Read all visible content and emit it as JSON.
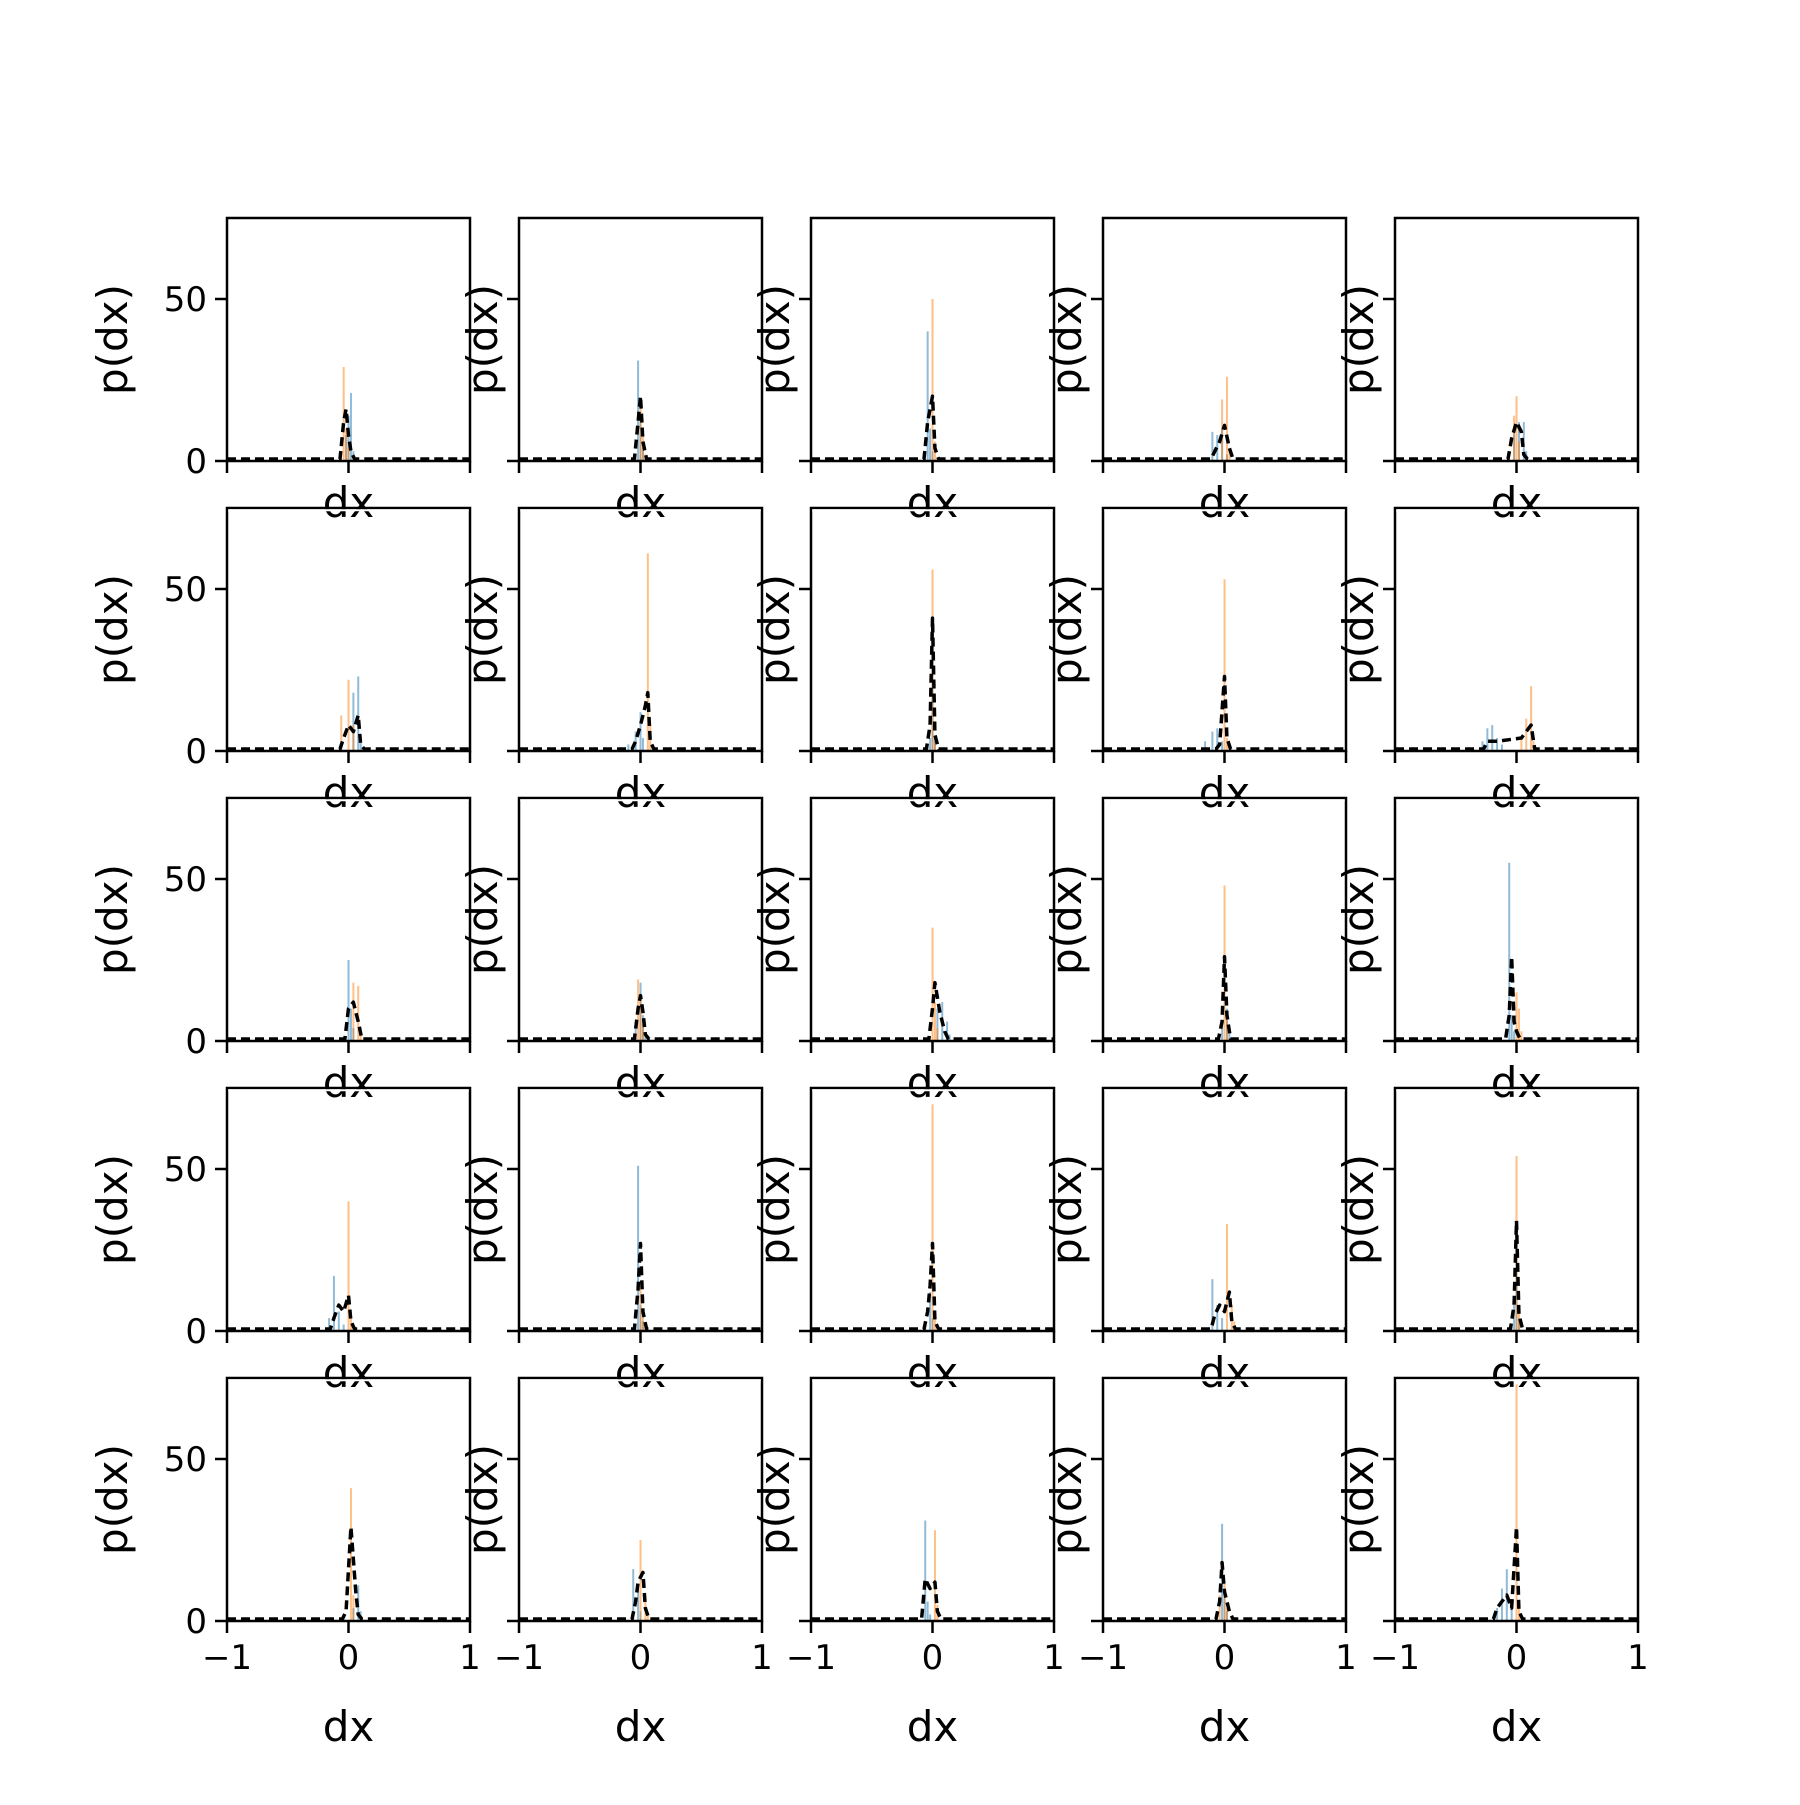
{
  "figure": {
    "rows": 5,
    "cols": 5,
    "xlabel": "dx",
    "ylabel": "p(dx)",
    "xlim": [
      -1,
      1
    ],
    "ylim": [
      0,
      75
    ],
    "xticks": [
      -1,
      0,
      1
    ],
    "xtick_labels": [
      "−1",
      "0",
      "1"
    ],
    "yticks": [
      0,
      50
    ],
    "ytick_labels": [
      "0",
      "50"
    ],
    "colors": {
      "series_a": "#1f77b4",
      "series_b": "#ff7f0e",
      "series_c": "#000000"
    }
  },
  "chart_data": {
    "type": "area",
    "grid": false,
    "legend": "none",
    "panel_layout": "5x5 grid of histogram panels, row-major order",
    "panels": [
      {
        "a": [
          [
            -0.02,
            8
          ],
          [
            0.0,
            14
          ],
          [
            0.02,
            21
          ],
          [
            0.04,
            3
          ]
        ],
        "b": [
          [
            -0.04,
            29
          ],
          [
            -0.02,
            10
          ],
          [
            0.0,
            4
          ]
        ],
        "c": [
          [
            -0.04,
            12
          ],
          [
            -0.02,
            16
          ],
          [
            0.0,
            8
          ],
          [
            0.02,
            3
          ]
        ]
      },
      {
        "a": [
          [
            -0.02,
            31
          ],
          [
            0.0,
            12
          ],
          [
            0.02,
            4
          ]
        ],
        "b": [
          [
            0.0,
            18
          ],
          [
            0.02,
            8
          ],
          [
            0.04,
            2
          ]
        ],
        "c": [
          [
            -0.02,
            12
          ],
          [
            0.0,
            20
          ],
          [
            0.02,
            6
          ]
        ]
      },
      {
        "a": [
          [
            -0.04,
            40
          ],
          [
            -0.02,
            10
          ],
          [
            0.0,
            3
          ]
        ],
        "b": [
          [
            0.0,
            50
          ],
          [
            0.02,
            6
          ]
        ],
        "c": [
          [
            -0.04,
            12
          ],
          [
            -0.02,
            16
          ],
          [
            0.0,
            20
          ],
          [
            0.02,
            4
          ]
        ]
      },
      {
        "a": [
          [
            -0.1,
            9
          ],
          [
            -0.06,
            8
          ],
          [
            -0.02,
            10
          ],
          [
            0.02,
            2
          ]
        ],
        "b": [
          [
            -0.02,
            19
          ],
          [
            0.02,
            26
          ],
          [
            0.04,
            4
          ]
        ],
        "c": [
          [
            -0.08,
            3
          ],
          [
            -0.04,
            6
          ],
          [
            0.0,
            11
          ],
          [
            0.04,
            4
          ]
        ]
      },
      {
        "a": [
          [
            -0.02,
            10
          ],
          [
            0.02,
            12
          ],
          [
            0.06,
            12
          ],
          [
            0.08,
            3
          ]
        ],
        "b": [
          [
            -0.02,
            14
          ],
          [
            0.0,
            20
          ],
          [
            0.02,
            6
          ]
        ],
        "c": [
          [
            -0.04,
            7
          ],
          [
            0.0,
            12
          ],
          [
            0.04,
            9
          ],
          [
            0.06,
            2
          ]
        ]
      },
      {
        "a": [
          [
            0.04,
            18
          ],
          [
            0.08,
            23
          ],
          [
            0.1,
            4
          ]
        ],
        "b": [
          [
            -0.06,
            11
          ],
          [
            0.0,
            22
          ],
          [
            0.04,
            8
          ]
        ],
        "c": [
          [
            -0.04,
            4
          ],
          [
            0.0,
            8
          ],
          [
            0.04,
            6
          ],
          [
            0.08,
            11
          ],
          [
            0.1,
            2
          ]
        ]
      },
      {
        "a": [
          [
            -0.1,
            2
          ],
          [
            -0.04,
            6
          ],
          [
            0.0,
            12
          ],
          [
            0.02,
            4
          ]
        ],
        "b": [
          [
            0.06,
            61
          ],
          [
            0.08,
            8
          ]
        ],
        "c": [
          [
            -0.04,
            3
          ],
          [
            0.0,
            8
          ],
          [
            0.04,
            14
          ],
          [
            0.06,
            18
          ],
          [
            0.08,
            3
          ]
        ]
      },
      {
        "a": [
          [
            -0.02,
            4
          ],
          [
            0.0,
            34
          ],
          [
            0.02,
            4
          ]
        ],
        "b": [
          [
            0.0,
            56
          ],
          [
            0.02,
            3
          ]
        ],
        "c": [
          [
            -0.02,
            8
          ],
          [
            0.0,
            41
          ],
          [
            0.02,
            5
          ]
        ]
      },
      {
        "a": [
          [
            -0.16,
            3
          ],
          [
            -0.1,
            6
          ],
          [
            -0.06,
            7
          ],
          [
            -0.02,
            3
          ]
        ],
        "b": [
          [
            0.0,
            53
          ],
          [
            0.02,
            4
          ]
        ],
        "c": [
          [
            -0.04,
            2
          ],
          [
            0.0,
            23
          ],
          [
            0.02,
            4
          ]
        ]
      },
      {
        "a": [
          [
            -0.28,
            3
          ],
          [
            -0.24,
            7
          ],
          [
            -0.2,
            8
          ],
          [
            -0.16,
            4
          ],
          [
            -0.12,
            2
          ]
        ],
        "b": [
          [
            0.04,
            4
          ],
          [
            0.08,
            10
          ],
          [
            0.12,
            20
          ],
          [
            0.14,
            3
          ]
        ],
        "c": [
          [
            -0.24,
            3
          ],
          [
            -0.16,
            3
          ],
          [
            0.04,
            4
          ],
          [
            0.12,
            8
          ]
        ]
      },
      {
        "a": [
          [
            0.0,
            25
          ],
          [
            0.02,
            10
          ],
          [
            0.04,
            4
          ]
        ],
        "b": [
          [
            0.04,
            18
          ],
          [
            0.08,
            17
          ],
          [
            0.1,
            4
          ]
        ],
        "c": [
          [
            0.0,
            10
          ],
          [
            0.04,
            12
          ],
          [
            0.08,
            6
          ]
        ]
      },
      {
        "a": [
          [
            -0.04,
            6
          ],
          [
            0.0,
            18
          ],
          [
            0.02,
            8
          ],
          [
            0.04,
            2
          ]
        ],
        "b": [
          [
            -0.02,
            19
          ],
          [
            0.0,
            14
          ],
          [
            0.02,
            6
          ]
        ],
        "c": [
          [
            -0.02,
            10
          ],
          [
            0.0,
            14
          ],
          [
            0.02,
            9
          ],
          [
            0.04,
            2
          ]
        ]
      },
      {
        "a": [
          [
            0.04,
            10
          ],
          [
            0.08,
            12
          ],
          [
            0.12,
            6
          ],
          [
            0.14,
            2
          ]
        ],
        "b": [
          [
            0.0,
            35
          ],
          [
            0.02,
            12
          ],
          [
            0.04,
            4
          ]
        ],
        "c": [
          [
            0.0,
            10
          ],
          [
            0.02,
            18
          ],
          [
            0.06,
            9
          ],
          [
            0.1,
            3
          ]
        ]
      },
      {
        "a": [
          [
            -0.02,
            6
          ],
          [
            0.02,
            10
          ],
          [
            0.04,
            4
          ]
        ],
        "b": [
          [
            0.0,
            48
          ],
          [
            0.02,
            8
          ]
        ],
        "c": [
          [
            -0.02,
            6
          ],
          [
            0.0,
            26
          ],
          [
            0.02,
            8
          ]
        ]
      },
      {
        "a": [
          [
            -0.06,
            55
          ],
          [
            -0.04,
            8
          ],
          [
            -0.02,
            3
          ]
        ],
        "b": [
          [
            0.0,
            15
          ],
          [
            0.02,
            10
          ],
          [
            0.04,
            3
          ]
        ],
        "c": [
          [
            -0.06,
            8
          ],
          [
            -0.04,
            26
          ],
          [
            -0.02,
            6
          ],
          [
            0.0,
            3
          ]
        ]
      },
      {
        "a": [
          [
            -0.16,
            4
          ],
          [
            -0.12,
            17
          ],
          [
            -0.08,
            6
          ],
          [
            -0.04,
            2
          ]
        ],
        "b": [
          [
            0.0,
            40
          ],
          [
            0.02,
            6
          ]
        ],
        "c": [
          [
            -0.12,
            4
          ],
          [
            -0.08,
            8
          ],
          [
            -0.04,
            6
          ],
          [
            0.0,
            11
          ],
          [
            0.02,
            3
          ]
        ]
      },
      {
        "a": [
          [
            -0.02,
            51
          ],
          [
            0.0,
            8
          ],
          [
            0.02,
            3
          ]
        ],
        "b": [
          [
            0.0,
            15
          ],
          [
            0.02,
            6
          ],
          [
            0.04,
            2
          ]
        ],
        "c": [
          [
            -0.02,
            13
          ],
          [
            0.0,
            27
          ],
          [
            0.02,
            6
          ]
        ]
      },
      {
        "a": [
          [
            -0.06,
            3
          ],
          [
            -0.02,
            12
          ],
          [
            0.0,
            4
          ]
        ],
        "b": [
          [
            0.0,
            70
          ],
          [
            0.02,
            4
          ]
        ],
        "c": [
          [
            -0.04,
            6
          ],
          [
            -0.02,
            14
          ],
          [
            0.0,
            27
          ],
          [
            0.02,
            3
          ]
        ]
      },
      {
        "a": [
          [
            -0.1,
            16
          ],
          [
            -0.06,
            8
          ],
          [
            -0.02,
            4
          ]
        ],
        "b": [
          [
            0.02,
            33
          ],
          [
            0.06,
            8
          ],
          [
            0.08,
            3
          ]
        ],
        "c": [
          [
            -0.08,
            5
          ],
          [
            -0.04,
            8
          ],
          [
            0.0,
            6
          ],
          [
            0.04,
            12
          ],
          [
            0.06,
            3
          ]
        ]
      },
      {
        "a": [
          [
            -0.02,
            8
          ],
          [
            0.0,
            25
          ],
          [
            0.02,
            4
          ]
        ],
        "b": [
          [
            0.0,
            54
          ],
          [
            0.02,
            6
          ]
        ],
        "c": [
          [
            -0.02,
            8
          ],
          [
            0.0,
            34
          ],
          [
            0.02,
            5
          ]
        ]
      },
      {
        "a": [
          [
            0.04,
            4
          ],
          [
            0.08,
            11
          ],
          [
            0.1,
            3
          ]
        ],
        "b": [
          [
            0.02,
            41
          ],
          [
            0.04,
            8
          ]
        ],
        "c": [
          [
            -0.02,
            3
          ],
          [
            0.02,
            29
          ],
          [
            0.06,
            9
          ],
          [
            0.08,
            2
          ]
        ]
      },
      {
        "a": [
          [
            -0.06,
            16
          ],
          [
            -0.02,
            10
          ],
          [
            0.0,
            3
          ]
        ],
        "b": [
          [
            0.0,
            25
          ],
          [
            0.04,
            8
          ],
          [
            0.06,
            2
          ]
        ],
        "c": [
          [
            -0.04,
            6
          ],
          [
            -0.02,
            12
          ],
          [
            0.02,
            15
          ],
          [
            0.04,
            4
          ]
        ]
      },
      {
        "a": [
          [
            -0.06,
            31
          ],
          [
            -0.04,
            6
          ],
          [
            -0.02,
            2
          ]
        ],
        "b": [
          [
            0.02,
            28
          ],
          [
            0.04,
            5
          ]
        ],
        "c": [
          [
            -0.06,
            13
          ],
          [
            -0.02,
            10
          ],
          [
            0.02,
            12
          ],
          [
            0.04,
            3
          ]
        ]
      },
      {
        "a": [
          [
            -0.02,
            30
          ],
          [
            0.0,
            10
          ],
          [
            0.02,
            3
          ]
        ],
        "b": [
          [
            -0.04,
            8
          ],
          [
            0.0,
            12
          ],
          [
            0.02,
            4
          ]
        ],
        "c": [
          [
            -0.04,
            6
          ],
          [
            -0.02,
            18
          ],
          [
            0.0,
            9
          ],
          [
            0.04,
            3
          ]
        ]
      },
      {
        "a": [
          [
            -0.16,
            4
          ],
          [
            -0.12,
            10
          ],
          [
            -0.08,
            16
          ],
          [
            -0.04,
            4
          ]
        ],
        "b": [
          [
            0.0,
            73
          ],
          [
            0.02,
            4
          ]
        ],
        "c": [
          [
            -0.16,
            4
          ],
          [
            -0.08,
            8
          ],
          [
            -0.04,
            4
          ],
          [
            0.0,
            29
          ],
          [
            0.02,
            3
          ]
        ]
      }
    ]
  }
}
